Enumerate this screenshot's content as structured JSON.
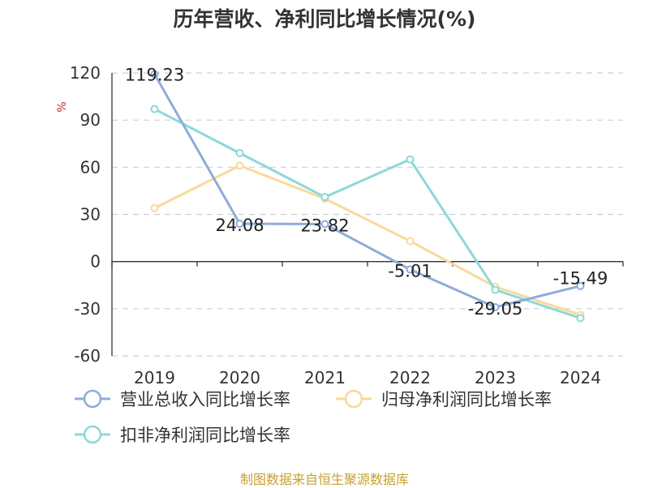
{
  "chart_data": {
    "type": "line",
    "title": "历年营收、净利同比增长情况(%)",
    "ylabel": "%",
    "xlabel": "",
    "categories": [
      "2019",
      "2020",
      "2021",
      "2022",
      "2023",
      "2024"
    ],
    "ylim": [
      -60,
      120
    ],
    "yticks": [
      120,
      90,
      60,
      30,
      0,
      -30,
      -60
    ],
    "grid": true,
    "legend_position": "bottom",
    "series": [
      {
        "name": "营业总收入同比增长率",
        "color": "#8eaddb",
        "values": [
          119.23,
          24.08,
          23.82,
          -5.01,
          -29.05,
          -15.49
        ],
        "labels": [
          "119.23",
          "24.08",
          "23.82",
          "-5.01",
          "-29.05",
          "-15.49"
        ]
      },
      {
        "name": "归母净利润同比增长率",
        "color": "#f9d99a",
        "values": [
          34,
          61,
          40,
          13,
          -16,
          -34
        ]
      },
      {
        "name": "扣非净利润同比增长率",
        "color": "#8dd8d8",
        "values": [
          97,
          69,
          41,
          65,
          -18,
          -36
        ]
      }
    ]
  },
  "source": "制图数据来自恒生聚源数据库"
}
